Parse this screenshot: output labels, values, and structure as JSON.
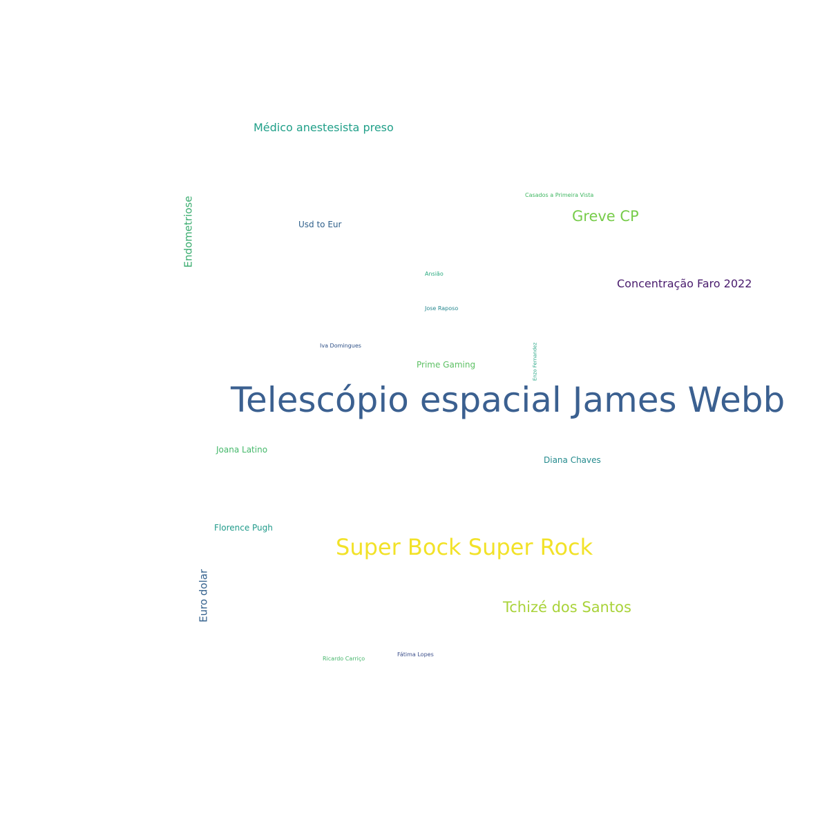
{
  "words": {
    "tele": {
      "text": "Telescópio espacial James Webb",
      "color": "#3b6090"
    },
    "super": {
      "text": "Super Bock Super Rock",
      "color": "#f2e228"
    },
    "tchize": {
      "text": "Tchizé dos Santos",
      "color": "#a9d33a"
    },
    "greve": {
      "text": "Greve CP",
      "color": "#77cc4a"
    },
    "medico": {
      "text": "Médico anestesista preso",
      "color": "#1f9f88"
    },
    "conc": {
      "text": "Concentração Faro 2022",
      "color": "#481a6c"
    },
    "endo": {
      "text": "Endometriose",
      "color": "#3aac6f"
    },
    "euro": {
      "text": "Euro dolar",
      "color": "#35628e"
    },
    "usd": {
      "text": "Usd to Eur",
      "color": "#2e5f8a"
    },
    "prime": {
      "text": "Prime Gaming",
      "color": "#5cc063"
    },
    "joana": {
      "text": "Joana Latino",
      "color": "#44b86a"
    },
    "diana": {
      "text": "Diana Chaves",
      "color": "#238a8d"
    },
    "flor": {
      "text": "Florence Pugh",
      "color": "#1f9a8a"
    },
    "casados": {
      "text": "Casados a Primeira Vista",
      "color": "#3db65f"
    },
    "ansiao": {
      "text": "Ansião",
      "color": "#27a97e"
    },
    "jose": {
      "text": "Jose Raposo",
      "color": "#24868e"
    },
    "iva": {
      "text": "Iva Domingues",
      "color": "#2d4f86"
    },
    "enzo": {
      "text": "Enzo Fernandez",
      "color": "#26a584"
    },
    "fatima": {
      "text": "Fátima Lopes",
      "color": "#3b4e8a"
    },
    "ricardo": {
      "text": "Ricardo Carriço",
      "color": "#44b56a"
    }
  }
}
